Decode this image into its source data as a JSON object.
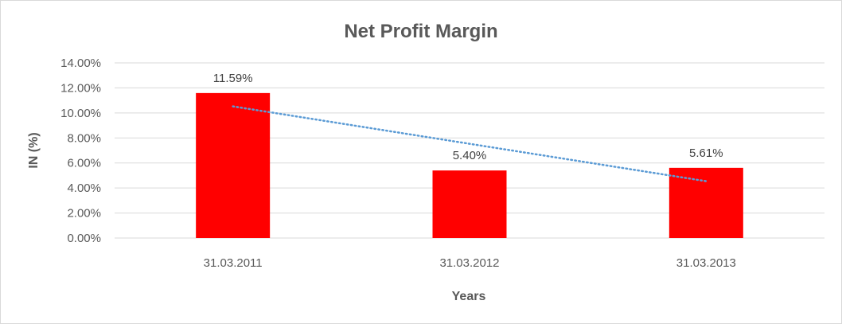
{
  "chart_data": {
    "type": "bar",
    "title": "Net Profit Margin",
    "xlabel": "Years",
    "ylabel": "IN (%)",
    "categories": [
      "31.03.2011",
      "31.03.2012",
      "31.03.2013"
    ],
    "values": [
      11.59,
      5.4,
      5.61
    ],
    "data_labels": [
      "11.59%",
      "5.40%",
      "5.61%"
    ],
    "ylim": [
      0,
      14
    ],
    "yticks": [
      0,
      2,
      4,
      6,
      8,
      10,
      12,
      14
    ],
    "ytick_labels": [
      "0.00%",
      "2.00%",
      "4.00%",
      "6.00%",
      "8.00%",
      "10.00%",
      "12.00%",
      "14.00%"
    ],
    "trendline": {
      "type": "linear",
      "style": "dotted",
      "color": "#5b9bd5"
    },
    "grid": true,
    "legend": "none",
    "colors": {
      "bar": "#ff0000",
      "grid": "#d9d9d9",
      "text": "#595959"
    }
  }
}
